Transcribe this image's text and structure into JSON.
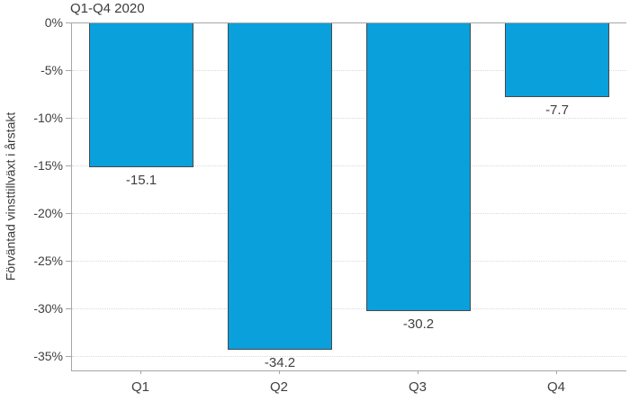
{
  "chart_data": {
    "type": "bar",
    "title": "Q1-Q4 2020",
    "xlabel": "",
    "ylabel": "Förväntad vinsttillväxt i årstakt",
    "categories": [
      "Q1",
      "Q2",
      "Q3",
      "Q4"
    ],
    "values": [
      -15.1,
      -34.2,
      -30.2,
      -7.7
    ],
    "data_labels": [
      "-15.1",
      "-34.2",
      "-30.2",
      "-7.7"
    ],
    "yticks": [
      0,
      -5,
      -10,
      -15,
      -20,
      -25,
      -30,
      -35
    ],
    "ytick_labels": [
      "0%",
      "-5%",
      "-10%",
      "-15%",
      "-20%",
      "-25%",
      "-30%",
      "-35%"
    ],
    "ylim": [
      -36.4,
      0
    ],
    "grid": "horizontal-dotted",
    "legend": "none",
    "colors": {
      "bar_fill": "#0aa0dc",
      "bar_border": "#46494d",
      "axis_line": "#a6a6a6",
      "gridline": "#d9d9d9",
      "text": "#404040"
    }
  }
}
